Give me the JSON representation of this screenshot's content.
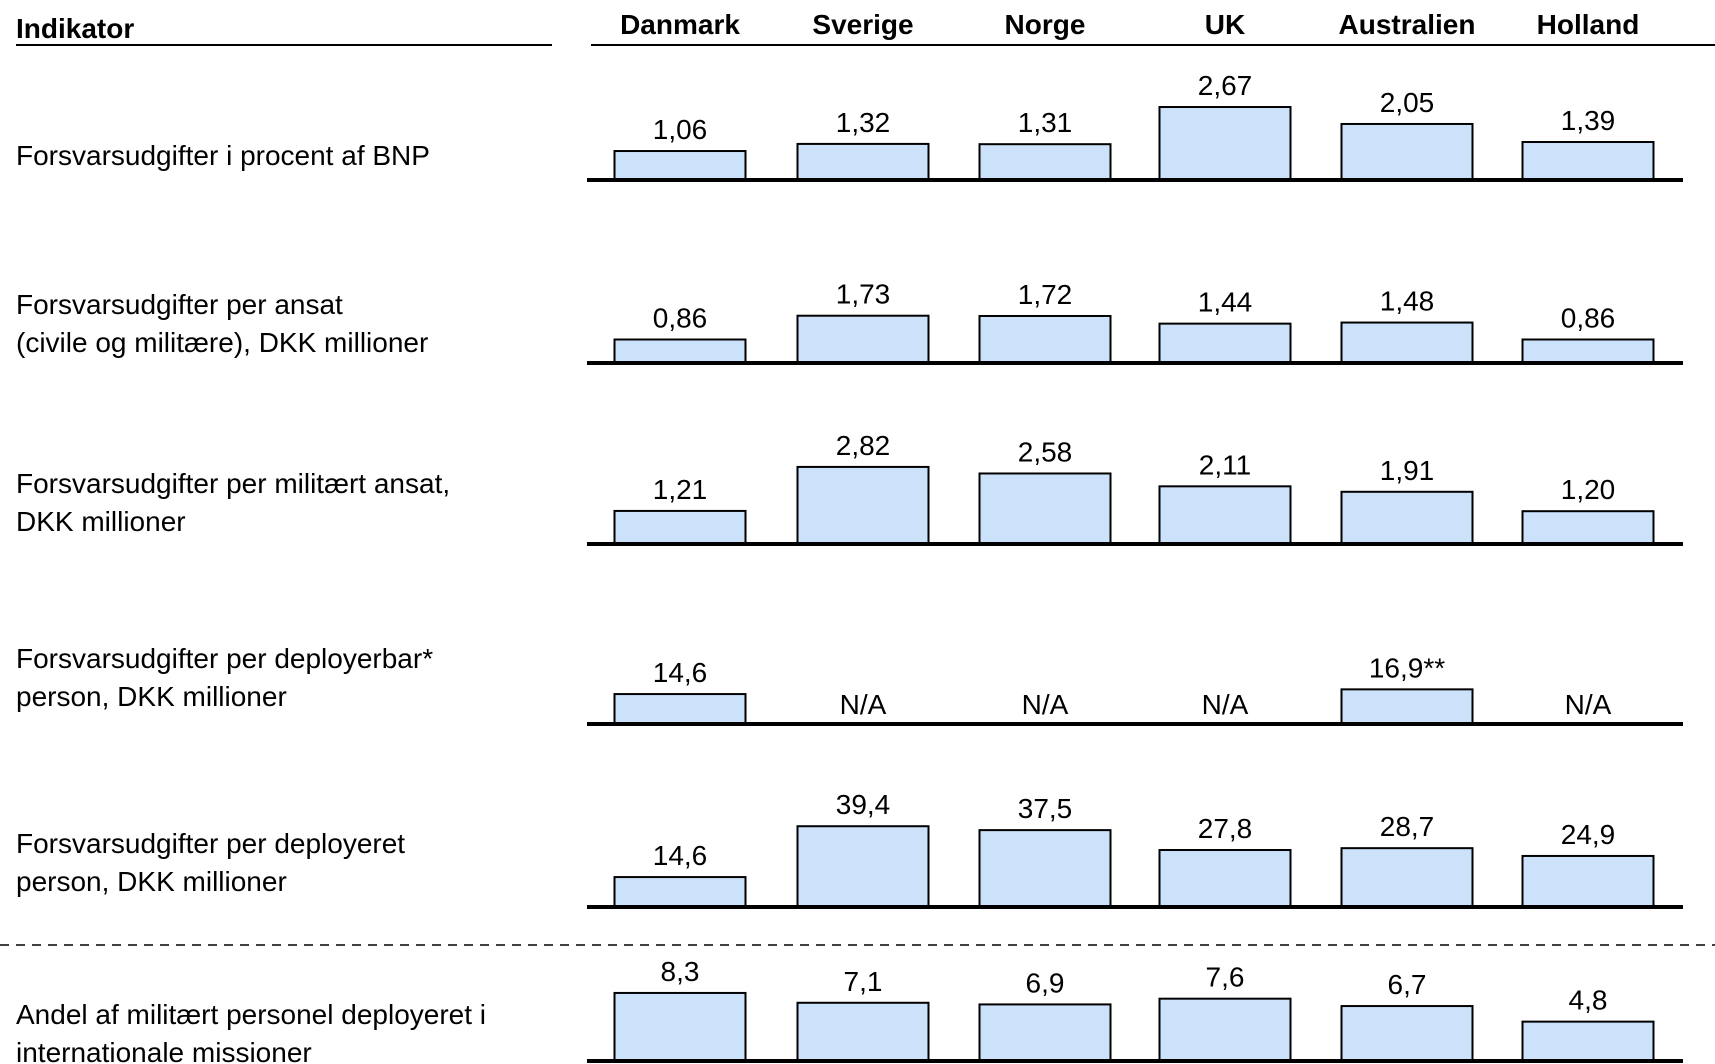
{
  "chart_data": {
    "type": "bar",
    "row_header": "Indikator",
    "categories": [
      "Danmark",
      "Sverige",
      "Norge",
      "UK",
      "Australien",
      "Holland"
    ],
    "color": "#cce2fb",
    "series": [
      {
        "name": "Forsvarsudgifter i procent af BNP",
        "ylim": [
          0,
          3
        ],
        "values": [
          1.06,
          1.32,
          1.31,
          2.67,
          2.05,
          1.39
        ],
        "value_labels": [
          "1,06",
          "1,32",
          "1,31",
          "2,67",
          "2,05",
          "1,39"
        ]
      },
      {
        "name": "Forsvarsudgifter per ansat\n(civile og militære), DKK millioner",
        "ylim": [
          0,
          3
        ],
        "values": [
          0.86,
          1.73,
          1.72,
          1.44,
          1.48,
          0.86
        ],
        "value_labels": [
          "0,86",
          "1,73",
          "1,72",
          "1,44",
          "1,48",
          "0,86"
        ]
      },
      {
        "name": "Forsvarsudgifter per militært ansat,\nDKK millioner",
        "ylim": [
          0,
          3
        ],
        "values": [
          1.21,
          2.82,
          2.58,
          2.11,
          1.91,
          1.2
        ],
        "value_labels": [
          "1,21",
          "2,82",
          "2,58",
          "2,11",
          "1,91",
          "1,20"
        ]
      },
      {
        "name": "Forsvarsudgifter per deployerbar*\nperson, DKK millioner",
        "ylim": [
          0,
          40
        ],
        "values": [
          14.6,
          null,
          null,
          null,
          16.9,
          null
        ],
        "value_labels": [
          "14,6",
          "N/A",
          "N/A",
          "N/A",
          "16,9**",
          "N/A"
        ]
      },
      {
        "name": "Forsvarsudgifter per deployeret\nperson, DKK millioner",
        "ylim": [
          0,
          40
        ],
        "values": [
          14.6,
          39.4,
          37.5,
          27.8,
          28.7,
          24.9
        ],
        "value_labels": [
          "14,6",
          "39,4",
          "37,5",
          "27,8",
          "28,7",
          "24,9"
        ]
      },
      {
        "name": "Andel af militært personel deployeret i\ninternationale missioner",
        "ylim": [
          0,
          10
        ],
        "values": [
          8.3,
          7.1,
          6.9,
          7.6,
          6.7,
          4.8
        ],
        "value_labels": [
          "8,3",
          "7,1",
          "6,9",
          "7,6",
          "6,7",
          "4,8"
        ]
      }
    ]
  }
}
